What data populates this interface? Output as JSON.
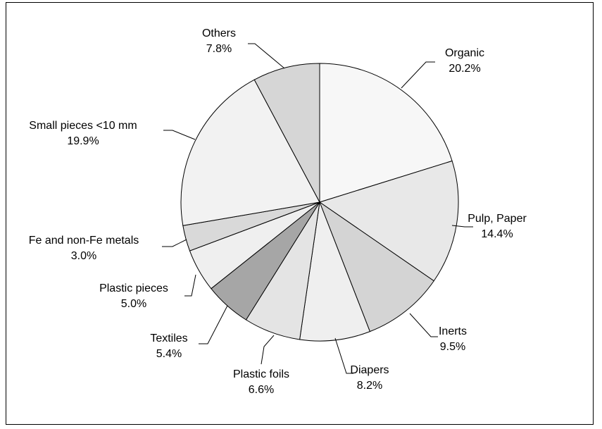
{
  "chart_data": {
    "type": "pie",
    "title": "",
    "start": "12 o'clock",
    "direction": "clockwise",
    "slices": [
      {
        "label": "Organic",
        "value": 20.2,
        "value_label": "20.2%",
        "color": "#f7f7f7"
      },
      {
        "label": "Pulp, Paper",
        "value": 14.4,
        "value_label": "14.4%",
        "color": "#e8e8e8"
      },
      {
        "label": "Inerts",
        "value": 9.5,
        "value_label": "9.5%",
        "color": "#d4d4d4"
      },
      {
        "label": "Diapers",
        "value": 8.2,
        "value_label": "8.2%",
        "color": "#efefef"
      },
      {
        "label": "Plastic foils",
        "value": 6.6,
        "value_label": "6.6%",
        "color": "#e4e4e4"
      },
      {
        "label": "Textiles",
        "value": 5.4,
        "value_label": "5.4%",
        "color": "#a6a6a6"
      },
      {
        "label": "Plastic pieces",
        "value": 5.0,
        "value_label": "5.0%",
        "color": "#efefef"
      },
      {
        "label": "Fe and non-Fe metals",
        "value": 3.0,
        "value_label": "3.0%",
        "color": "#d9d9d9"
      },
      {
        "label": "Small pieces <10 mm",
        "value": 19.9,
        "value_label": "19.9%",
        "color": "#f2f2f2"
      },
      {
        "label": "Others",
        "value": 7.8,
        "value_label": "7.8%",
        "color": "#d6d6d6"
      }
    ]
  }
}
